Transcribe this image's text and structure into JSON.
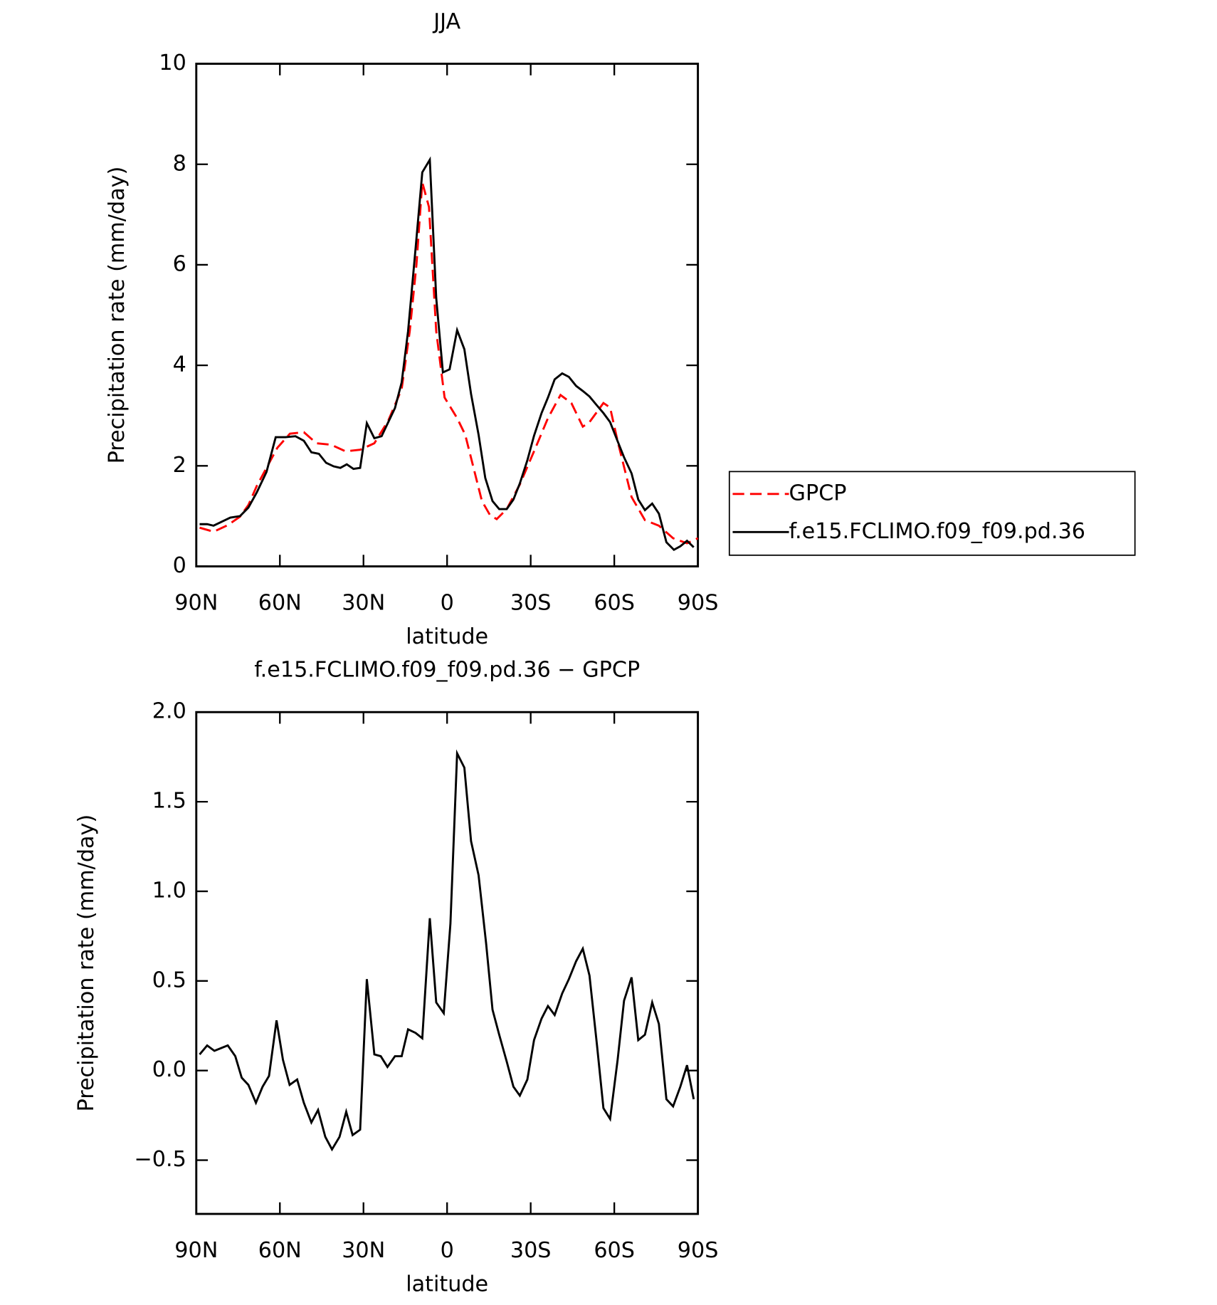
{
  "chart_data": [
    {
      "type": "line",
      "title": "JJA",
      "xlabel": "latitude",
      "ylabel": "Precipitation rate (mm/day)",
      "xlim": [
        90,
        -90
      ],
      "xticks": [
        {
          "value": 90,
          "label": "90N"
        },
        {
          "value": 60,
          "label": "60N"
        },
        {
          "value": 30,
          "label": "30N"
        },
        0,
        {
          "value": -30,
          "label": "30S"
        },
        {
          "value": -60,
          "label": "60S"
        },
        {
          "value": -90,
          "label": "90S"
        }
      ],
      "ylim": [
        0,
        10
      ],
      "yticks": [
        0,
        2,
        4,
        6,
        8,
        10
      ],
      "legend_position": "right",
      "series": [
        {
          "name": "GPCP",
          "color": "#ff0000",
          "linestyle": "dashed",
          "x": [
            88.8,
            83.8,
            78.7,
            74.3,
            71.3,
            68.3,
            64.8,
            60.9,
            56.4,
            51.4,
            46.9,
            41.6,
            36.5,
            31.2,
            26.1,
            21.1,
            16.3,
            13.4,
            11.0,
            8.9,
            6.5,
            3.9,
            0.9,
            -3.6,
            -6.5,
            -9.5,
            -12.5,
            -15.4,
            -17.8,
            -21.4,
            -26.1,
            -31.2,
            -36.2,
            -40.7,
            -44.6,
            -48.7,
            -51.1,
            -56.1,
            -58.5,
            -61.2,
            -66.2,
            -71.0,
            -76.0,
            -81.1,
            -86.1,
            -90
          ],
          "values": [
            0.77,
            0.69,
            0.82,
            0.99,
            1.22,
            1.6,
            1.96,
            2.36,
            2.64,
            2.67,
            2.45,
            2.42,
            2.29,
            2.32,
            2.45,
            2.9,
            3.53,
            4.68,
            6.0,
            7.64,
            7.15,
            4.68,
            3.36,
            2.95,
            2.62,
            1.96,
            1.3,
            1.02,
            0.94,
            1.14,
            1.63,
            2.29,
            2.95,
            3.41,
            3.25,
            2.78,
            2.87,
            3.25,
            3.16,
            2.49,
            1.38,
            0.92,
            0.81,
            0.56,
            0.46,
            0.56
          ]
        },
        {
          "name": "f.e15.FCLIMO.f09_f09.pd.36",
          "color": "#000000",
          "linestyle": "solid",
          "x": [
            88.8,
            86.1,
            83.8,
            80.8,
            77.8,
            74.3,
            71.3,
            68.3,
            64.8,
            61.5,
            58.0,
            54.4,
            51.4,
            48.7,
            46.0,
            43.4,
            40.7,
            38.3,
            36.0,
            33.6,
            31.2,
            28.8,
            26.1,
            23.5,
            21.1,
            18.7,
            16.3,
            14.0,
            11.3,
            8.9,
            6.2,
            3.9,
            1.5,
            -0.9,
            -3.6,
            -6.2,
            -8.6,
            -11.3,
            -13.7,
            -16.3,
            -18.7,
            -21.4,
            -23.8,
            -26.1,
            -28.8,
            -31.2,
            -33.9,
            -36.2,
            -38.6,
            -41.3,
            -43.7,
            -46.3,
            -48.7,
            -51.1,
            -53.8,
            -56.1,
            -58.5,
            -61.2,
            -63.5,
            -66.2,
            -68.6,
            -71.0,
            -73.6,
            -76.0,
            -78.7,
            -81.4,
            -83.7,
            -86.1,
            -88.5
          ],
          "values": [
            0.84,
            0.84,
            0.81,
            0.89,
            0.97,
            1.0,
            1.17,
            1.47,
            1.88,
            2.57,
            2.57,
            2.59,
            2.5,
            2.27,
            2.24,
            2.06,
            1.99,
            1.96,
            2.03,
            1.94,
            1.96,
            2.85,
            2.55,
            2.59,
            2.87,
            3.15,
            3.66,
            4.68,
            6.33,
            7.84,
            8.09,
            5.34,
            3.86,
            3.92,
            4.7,
            4.32,
            3.43,
            2.62,
            1.76,
            1.3,
            1.14,
            1.14,
            1.33,
            1.65,
            2.11,
            2.6,
            3.05,
            3.36,
            3.72,
            3.84,
            3.77,
            3.59,
            3.49,
            3.38,
            3.2,
            3.05,
            2.87,
            2.49,
            2.17,
            1.85,
            1.33,
            1.12,
            1.25,
            1.05,
            0.48,
            0.33,
            0.4,
            0.51,
            0.38
          ]
        }
      ]
    },
    {
      "type": "line",
      "title": "f.e15.FCLIMO.f09_f09.pd.36 − GPCP",
      "xlabel": "latitude",
      "ylabel": "Precipitation rate (mm/day)",
      "xlim": [
        90,
        -90
      ],
      "xticks": [
        {
          "value": 90,
          "label": "90N"
        },
        {
          "value": 60,
          "label": "60N"
        },
        {
          "value": 30,
          "label": "30N"
        },
        0,
        {
          "value": -30,
          "label": "30S"
        },
        {
          "value": -60,
          "label": "60S"
        },
        {
          "value": -90,
          "label": "90S"
        }
      ],
      "ylim": [
        -0.8,
        2.0
      ],
      "yticks": [
        {
          "value": -0.5,
          "label": "−0.5"
        },
        {
          "value": 0,
          "label": "0.0"
        },
        0.5,
        {
          "value": 1,
          "label": "1.0"
        },
        1.5,
        {
          "value": 2,
          "label": "2.0"
        }
      ],
      "series": [
        {
          "color": "#000000",
          "linestyle": "solid",
          "x": [
            88.8,
            86.1,
            83.5,
            78.7,
            76.0,
            73.7,
            71.3,
            68.6,
            66.2,
            63.9,
            61.2,
            58.9,
            56.5,
            53.8,
            51.4,
            48.7,
            46.3,
            43.7,
            41.3,
            38.6,
            36.2,
            33.9,
            31.2,
            28.8,
            26.1,
            23.8,
            21.4,
            18.7,
            16.3,
            14.0,
            11.3,
            8.9,
            6.2,
            3.9,
            1.2,
            -1.2,
            -3.6,
            -6.2,
            -8.6,
            -11.3,
            -14.0,
            -16.3,
            -18.7,
            -21.4,
            -23.8,
            -26.1,
            -28.8,
            -31.2,
            -33.9,
            -36.2,
            -38.6,
            -41.3,
            -43.7,
            -46.3,
            -48.7,
            -51.1,
            -53.8,
            -56.1,
            -58.5,
            -61.2,
            -63.5,
            -66.2,
            -68.6,
            -71.0,
            -73.6,
            -76.0,
            -78.7,
            -81.1,
            -83.7,
            -86.1,
            -88.5
          ],
          "values": [
            0.09,
            0.14,
            0.11,
            0.14,
            0.08,
            -0.04,
            -0.08,
            -0.18,
            -0.09,
            -0.03,
            0.28,
            0.06,
            -0.08,
            -0.05,
            -0.18,
            -0.29,
            -0.22,
            -0.37,
            -0.44,
            -0.37,
            -0.23,
            -0.36,
            -0.33,
            0.51,
            0.09,
            0.08,
            0.02,
            0.08,
            0.08,
            0.23,
            0.21,
            0.18,
            0.85,
            0.38,
            0.32,
            0.82,
            1.77,
            1.69,
            1.28,
            1.09,
            0.71,
            0.34,
            0.2,
            0.05,
            -0.09,
            -0.14,
            -0.05,
            0.17,
            0.29,
            0.36,
            0.31,
            0.43,
            0.51,
            0.61,
            0.68,
            0.53,
            0.14,
            -0.21,
            -0.27,
            0.06,
            0.39,
            0.52,
            0.17,
            0.2,
            0.38,
            0.26,
            -0.16,
            -0.2,
            -0.09,
            0.03,
            -0.16
          ]
        }
      ]
    }
  ]
}
